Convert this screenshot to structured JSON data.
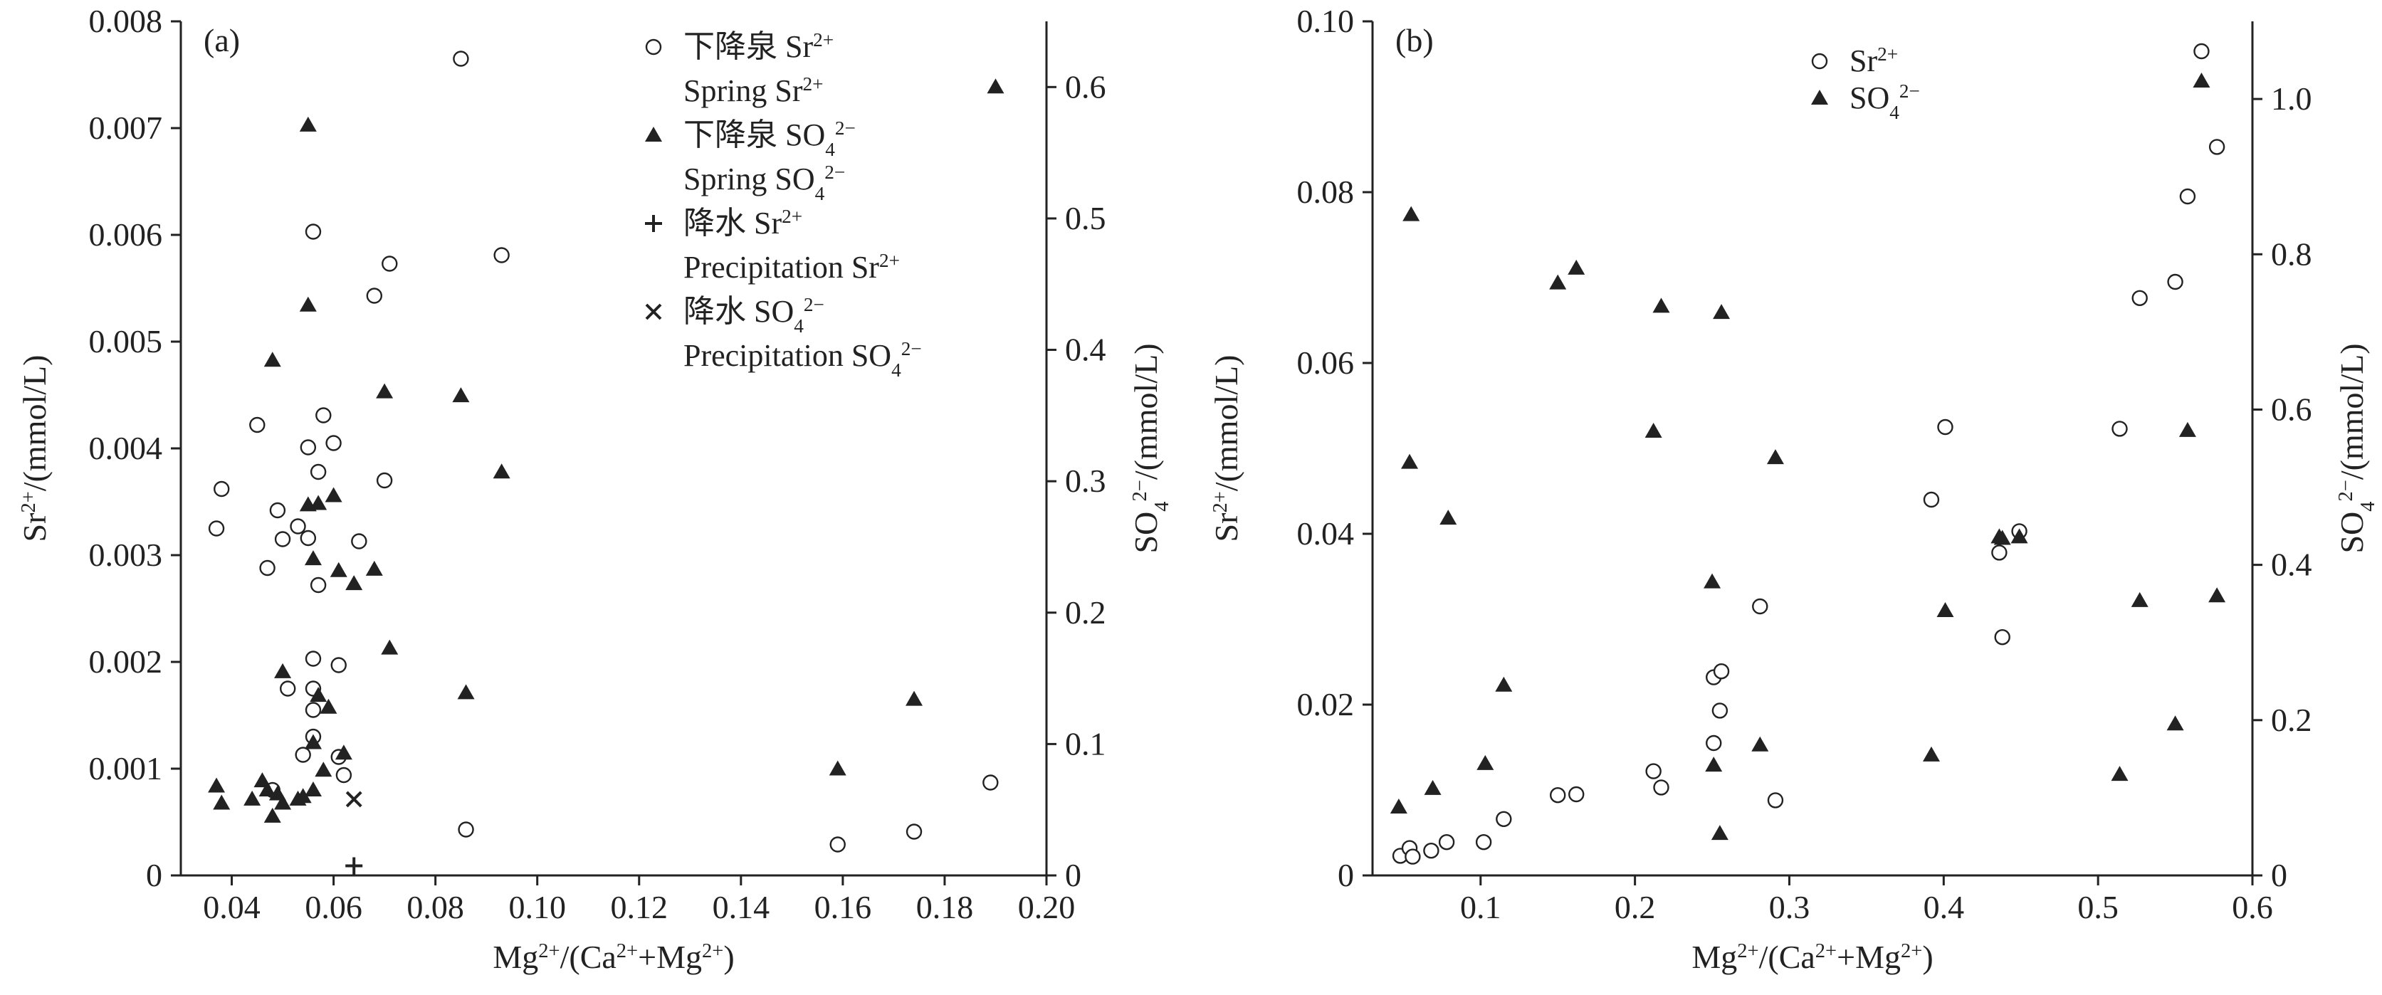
{
  "chart_data": [
    {
      "type": "scatter",
      "panel_label": "(a)",
      "xlabel": "Mg²⁺/(Ca²⁺+Mg²⁺)",
      "ylabel_left": "Sr²⁺/(mmol/L)",
      "ylabel_right": "SO₄²⁻/(mmol/L)",
      "xlim": [
        0.03,
        0.2
      ],
      "ylim_left": [
        0,
        0.008
      ],
      "ylim_right": [
        0,
        0.65
      ],
      "x_ticks": [
        "0.04",
        "0.06",
        "0.08",
        "0.10",
        "0.12",
        "0.14",
        "0.16",
        "0.18",
        "0.20"
      ],
      "y_left_ticks": [
        "0",
        "0.001",
        "0.002",
        "0.003",
        "0.004",
        "0.005",
        "0.006",
        "0.007",
        "0.008"
      ],
      "y_right_ticks": [
        "0",
        "0.1",
        "0.2",
        "0.3",
        "0.4",
        "0.5",
        "0.6"
      ],
      "legend_position": "top-center",
      "series": [
        {
          "name": "下降泉 Sr²⁺",
          "name_line2": "Spring Sr²⁺",
          "marker": "circle",
          "axis": "left",
          "x": [
            0.037,
            0.038,
            0.045,
            0.047,
            0.049,
            0.05,
            0.051,
            0.053,
            0.054,
            0.055,
            0.055,
            0.056,
            0.057,
            0.058,
            0.056,
            0.056,
            0.057,
            0.06,
            0.061,
            0.065,
            0.068,
            0.07,
            0.071,
            0.085,
            0.093,
            0.086,
            0.061,
            0.062,
            0.056,
            0.056,
            0.048,
            0.159,
            0.174,
            0.189
          ],
          "y": [
            0.00325,
            0.00362,
            0.00422,
            0.00288,
            0.00342,
            0.00315,
            0.00175,
            0.00327,
            0.00113,
            0.00316,
            0.00401,
            0.00603,
            0.00378,
            0.00431,
            0.00203,
            0.00155,
            0.00272,
            0.00405,
            0.00197,
            0.00313,
            0.00543,
            0.0037,
            0.00573,
            0.00765,
            0.00581,
            0.00043,
            0.00111,
            0.00094,
            0.0013,
            0.00175,
            0.0008,
            0.00029,
            0.00041,
            0.00087
          ]
        },
        {
          "name": "下降泉 SO₄²⁻",
          "name_line2": "Spring SO₄²⁻",
          "marker": "triangle",
          "axis": "right",
          "x": [
            0.037,
            0.038,
            0.044,
            0.046,
            0.047,
            0.048,
            0.048,
            0.049,
            0.05,
            0.05,
            0.053,
            0.054,
            0.055,
            0.055,
            0.055,
            0.056,
            0.056,
            0.056,
            0.057,
            0.057,
            0.058,
            0.059,
            0.06,
            0.061,
            0.062,
            0.064,
            0.068,
            0.07,
            0.071,
            0.085,
            0.086,
            0.093,
            0.159,
            0.174,
            0.19
          ],
          "y": [
            0.068,
            0.055,
            0.058,
            0.072,
            0.065,
            0.045,
            0.392,
            0.062,
            0.055,
            0.155,
            0.058,
            0.06,
            0.571,
            0.434,
            0.282,
            0.065,
            0.101,
            0.241,
            0.137,
            0.283,
            0.08,
            0.128,
            0.289,
            0.232,
            0.093,
            0.222,
            0.233,
            0.368,
            0.173,
            0.365,
            0.139,
            0.307,
            0.081,
            0.134,
            0.6
          ]
        },
        {
          "name": "降水 Sr²⁺",
          "name_line2": "Precipitation Sr²⁺",
          "marker": "plus",
          "axis": "left",
          "x": [
            0.064
          ],
          "y": [
            9e-05
          ]
        },
        {
          "name": "降水 SO₄²⁻",
          "name_line2": "Precipitation SO₄²⁻",
          "marker": "cross",
          "axis": "right",
          "x": [
            0.064
          ],
          "y": [
            0.058
          ]
        }
      ]
    },
    {
      "type": "scatter",
      "panel_label": "(b)",
      "xlabel": "Mg²⁺/(Ca²⁺+Mg²⁺)",
      "ylabel_left": "Sr²⁺/(mmol/L)",
      "ylabel_right": "SO₄²⁻/(mmol/L)",
      "xlim": [
        0.03,
        0.6
      ],
      "ylim_left": [
        0,
        0.1
      ],
      "ylim_right": [
        0,
        1.1
      ],
      "x_ticks": [
        "0.1",
        "0.2",
        "0.3",
        "0.4",
        "0.5",
        "0.6"
      ],
      "y_left_ticks": [
        "0",
        "0.02",
        "0.04",
        "0.06",
        "0.08",
        "0.10"
      ],
      "y_right_ticks": [
        "0",
        "0.2",
        "0.4",
        "0.6",
        "0.8",
        "1.0"
      ],
      "legend_position": "top-center",
      "series": [
        {
          "name": "Sr²⁺",
          "marker": "circle",
          "axis": "left",
          "x": [
            0.048,
            0.054,
            0.056,
            0.068,
            0.078,
            0.102,
            0.115,
            0.15,
            0.162,
            0.212,
            0.217,
            0.251,
            0.251,
            0.255,
            0.256,
            0.281,
            0.291,
            0.392,
            0.401,
            0.436,
            0.438,
            0.449,
            0.514,
            0.527,
            0.55,
            0.558,
            0.567,
            0.577
          ],
          "y": [
            0.0023,
            0.0032,
            0.0022,
            0.0029,
            0.0039,
            0.0039,
            0.0066,
            0.0094,
            0.0095,
            0.0122,
            0.0103,
            0.0155,
            0.0232,
            0.0193,
            0.0239,
            0.0315,
            0.0088,
            0.044,
            0.0525,
            0.0378,
            0.0279,
            0.0403,
            0.0523,
            0.0676,
            0.0695,
            0.0795,
            0.0965,
            0.0853
          ]
        },
        {
          "name": "SO₄²⁻",
          "marker": "triangle",
          "axis": "right",
          "x": [
            0.047,
            0.054,
            0.055,
            0.069,
            0.079,
            0.103,
            0.115,
            0.15,
            0.162,
            0.212,
            0.217,
            0.25,
            0.251,
            0.255,
            0.256,
            0.281,
            0.291,
            0.392,
            0.401,
            0.436,
            0.438,
            0.449,
            0.514,
            0.527,
            0.55,
            0.558,
            0.567,
            0.577
          ],
          "y": [
            0.088,
            0.532,
            0.851,
            0.112,
            0.46,
            0.144,
            0.245,
            0.763,
            0.782,
            0.572,
            0.733,
            0.378,
            0.142,
            0.054,
            0.725,
            0.168,
            0.538,
            0.155,
            0.341,
            0.436,
            0.434,
            0.436,
            0.13,
            0.354,
            0.195,
            0.573,
            1.023,
            0.36
          ]
        }
      ]
    }
  ]
}
